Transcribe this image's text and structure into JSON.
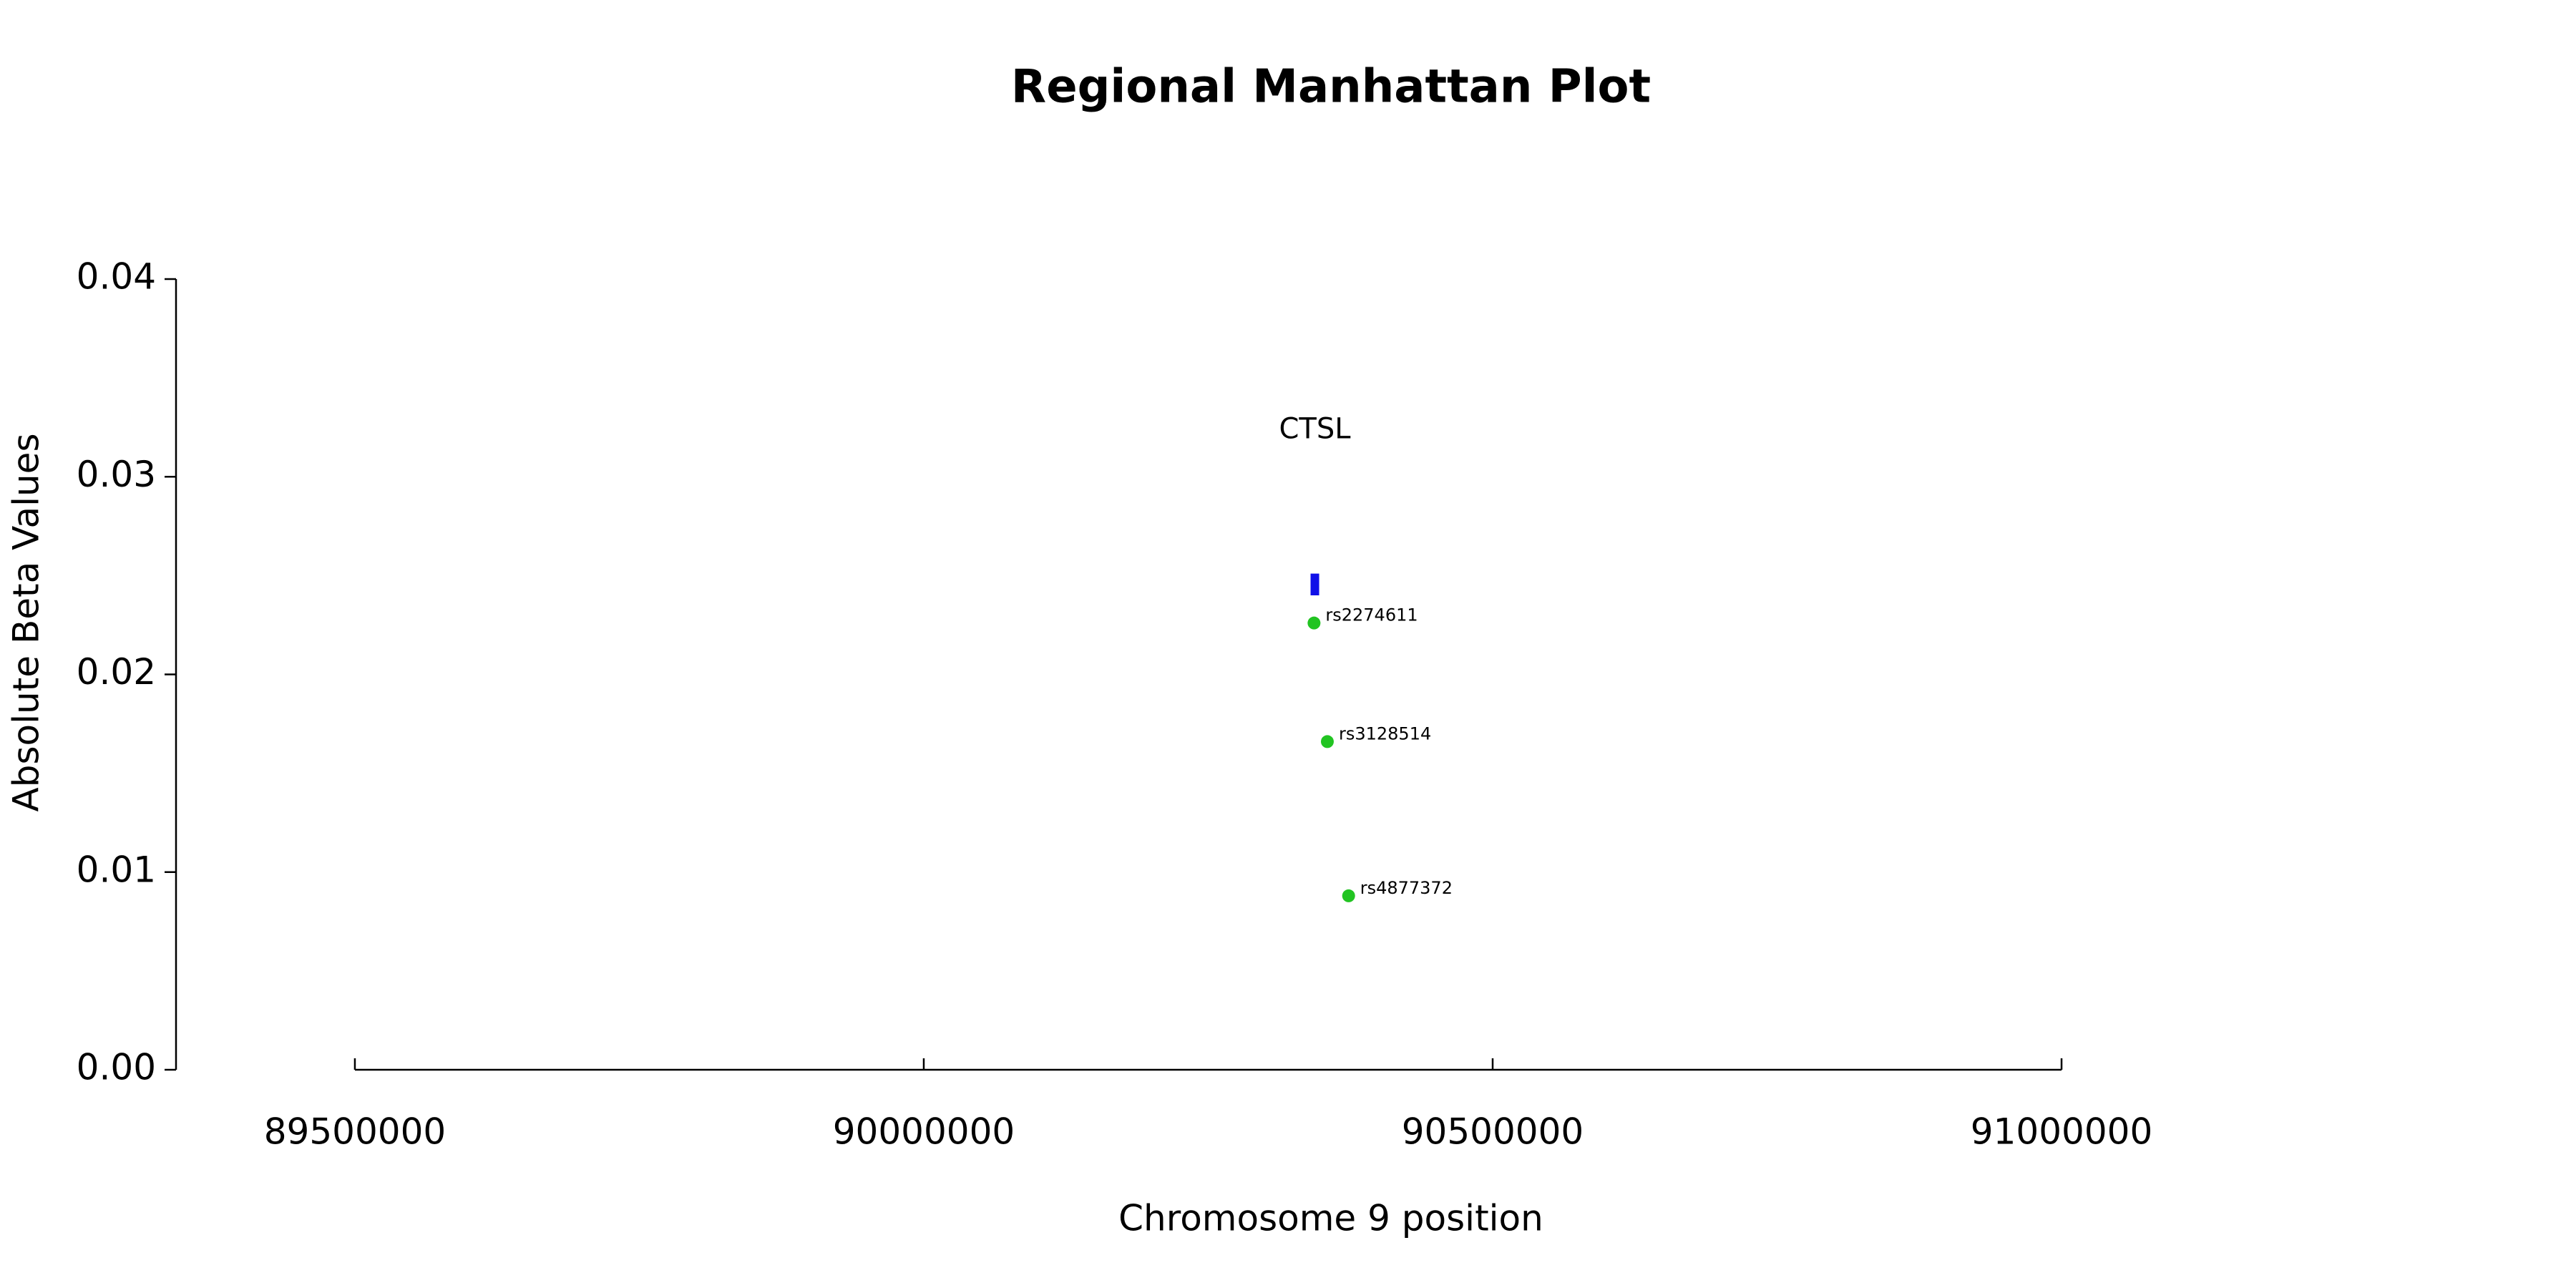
{
  "chart_data": {
    "type": "scatter",
    "title": "Regional Manhattan Plot",
    "xlabel": "Chromosome 9 position",
    "ylabel": "Absolute Beta Values",
    "xlim": [
      89342800,
      91157200
    ],
    "ylim": [
      0,
      0.04
    ],
    "xticks": [
      89500000,
      90000000,
      90500000,
      91000000
    ],
    "yticks": [
      {
        "value": 0,
        "label": "0.00"
      },
      0.01,
      0.02,
      0.03,
      0.04
    ],
    "series": [
      {
        "color": "#22c422",
        "x": [
          90343000,
          90354700,
          90373400
        ],
        "values": [
          0.0226,
          0.0166,
          0.0088
        ],
        "labels": [
          "rs2274611",
          "rs3128514",
          "rs4877372"
        ]
      }
    ],
    "genes": [
      {
        "name": "CTSL",
        "start": 90340974,
        "end": 90346484,
        "y": [
          0.024,
          0.0251
        ],
        "color": "#1010e8"
      }
    ]
  }
}
